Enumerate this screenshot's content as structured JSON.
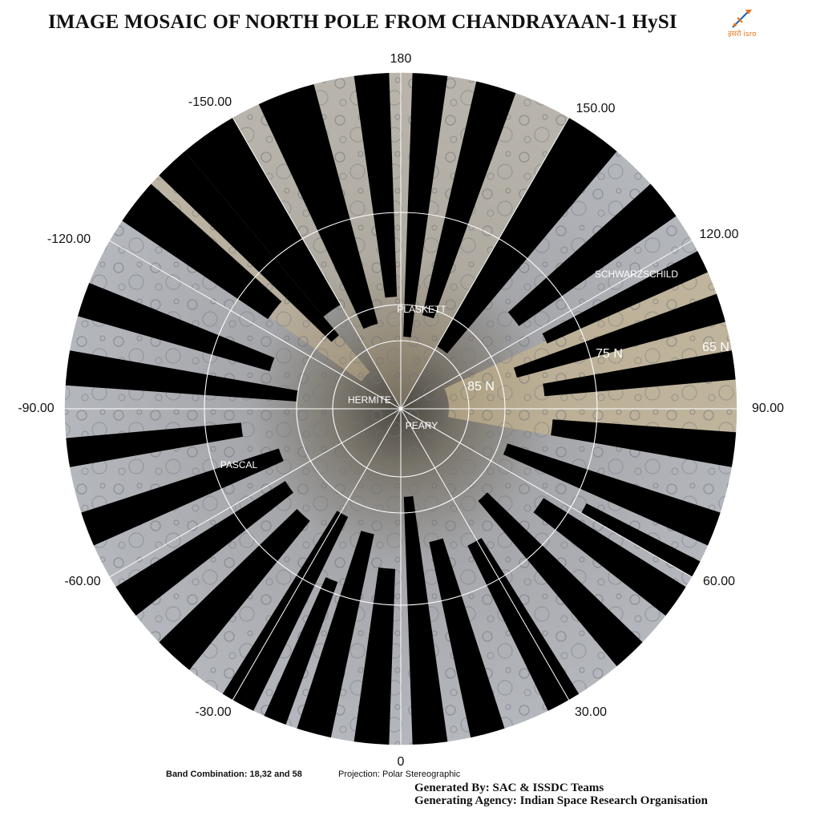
{
  "title": "IMAGE MOSAIC OF NORTH POLE FROM CHANDRAYAAN-1 HySI",
  "logo": {
    "icon": "isro-logo-icon",
    "text": "इसरो isro",
    "color": "#e8731c",
    "accent": "#1f5fa8"
  },
  "longitude_labels": [
    {
      "value": "180"
    },
    {
      "value": "150.00"
    },
    {
      "value": "120.00"
    },
    {
      "value": "90.00"
    },
    {
      "value": "60.00"
    },
    {
      "value": "30.00"
    },
    {
      "value": "0"
    },
    {
      "value": "-30.00"
    },
    {
      "value": "-60.00"
    },
    {
      "value": "-90.00"
    },
    {
      "value": "-120.00"
    },
    {
      "value": "-150.00"
    }
  ],
  "latitude_labels": [
    {
      "value": "85 N"
    },
    {
      "value": "75 N"
    },
    {
      "value": "65 N"
    }
  ],
  "crater_labels": [
    {
      "name": "PLASKETT"
    },
    {
      "name": "HERMITE"
    },
    {
      "name": "PEARY"
    },
    {
      "name": "PASCAL"
    },
    {
      "name": "SCHWARZSCHILD"
    }
  ],
  "footer": {
    "band": "Band Combination: 18,32 and 58",
    "projection": "Projection: Polar Stereographic",
    "generated_by": "Generated By: SAC & ISSDC Teams",
    "agency": "Generating Agency: Indian Space Research Organisation"
  },
  "colors": {
    "gap": "#000000",
    "terrain_grey": "#9aa0aa",
    "terrain_tan": "#b8ab92",
    "grid": "#ffffff"
  }
}
